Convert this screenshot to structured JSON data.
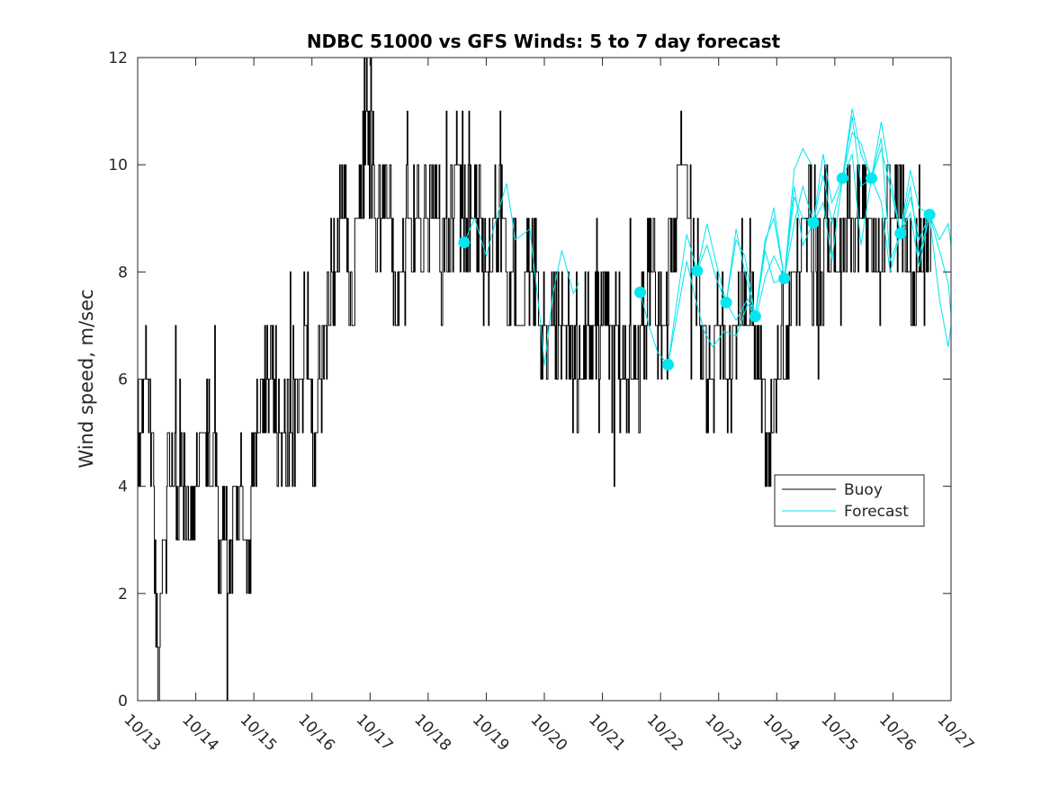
{
  "chart_data": {
    "type": "line",
    "title": "NDBC 51000 vs GFS Winds: 5 to 7 day forecast",
    "xlabel": "",
    "ylabel": "Wind speed, m/sec",
    "xlim": [
      0,
      14
    ],
    "ylim": [
      0,
      12
    ],
    "x_tick_labels": [
      "10/13",
      "10/14",
      "10/15",
      "10/16",
      "10/17",
      "10/18",
      "10/19",
      "10/20",
      "10/21",
      "10/22",
      "10/23",
      "10/24",
      "10/25",
      "10/26",
      "10/27"
    ],
    "y_ticks": [
      0,
      2,
      4,
      6,
      8,
      10,
      12
    ],
    "y_tick_labels": [
      "0",
      "2",
      "4",
      "6",
      "8",
      "10",
      "12"
    ],
    "legend": {
      "position": "right",
      "entries": [
        {
          "name": "Buoy",
          "color": "#000000"
        },
        {
          "name": "Forecast",
          "color": "#00e5ee"
        }
      ]
    },
    "colors": {
      "buoy": "#000000",
      "forecast": "#00e5ee",
      "marker": "#00e8f0"
    },
    "buoy_anchors": [
      [
        0.0,
        5
      ],
      [
        0.15,
        6
      ],
      [
        0.25,
        5
      ],
      [
        0.35,
        1
      ],
      [
        0.45,
        3
      ],
      [
        0.55,
        4
      ],
      [
        0.75,
        4
      ],
      [
        0.85,
        3
      ],
      [
        0.95,
        4
      ],
      [
        1.15,
        5
      ],
      [
        1.3,
        4
      ],
      [
        1.45,
        3
      ],
      [
        1.55,
        3
      ],
      [
        1.7,
        4
      ],
      [
        1.9,
        3
      ],
      [
        2.0,
        4
      ],
      [
        2.15,
        6
      ],
      [
        2.3,
        6
      ],
      [
        2.45,
        5
      ],
      [
        2.65,
        5
      ],
      [
        2.8,
        6
      ],
      [
        2.9,
        7
      ],
      [
        3.05,
        5
      ],
      [
        3.15,
        6
      ],
      [
        3.25,
        7
      ],
      [
        3.4,
        8
      ],
      [
        3.55,
        9
      ],
      [
        3.7,
        8
      ],
      [
        3.85,
        10
      ],
      [
        4.0,
        11
      ],
      [
        4.1,
        9
      ],
      [
        4.3,
        9
      ],
      [
        4.5,
        8
      ],
      [
        4.7,
        9
      ],
      [
        4.9,
        9
      ],
      [
        5.1,
        9
      ],
      [
        5.3,
        8
      ],
      [
        5.5,
        10
      ],
      [
        5.7,
        9
      ],
      [
        5.85,
        9
      ],
      [
        6.0,
        8
      ],
      [
        6.2,
        9
      ],
      [
        6.4,
        8
      ],
      [
        6.6,
        7
      ],
      [
        6.8,
        8
      ],
      [
        7.0,
        7
      ],
      [
        7.2,
        7
      ],
      [
        7.4,
        7
      ],
      [
        7.6,
        6
      ],
      [
        7.8,
        7
      ],
      [
        8.0,
        7
      ],
      [
        8.2,
        7
      ],
      [
        8.4,
        6
      ],
      [
        8.6,
        6
      ],
      [
        8.7,
        7
      ],
      [
        8.85,
        8
      ],
      [
        9.0,
        7
      ],
      [
        9.1,
        7
      ],
      [
        9.25,
        9
      ],
      [
        9.4,
        10
      ],
      [
        9.55,
        9
      ],
      [
        9.7,
        7
      ],
      [
        9.85,
        6
      ],
      [
        10.0,
        7
      ],
      [
        10.15,
        6
      ],
      [
        10.3,
        7
      ],
      [
        10.5,
        7
      ],
      [
        10.7,
        6
      ],
      [
        10.85,
        5
      ],
      [
        10.95,
        5
      ],
      [
        11.1,
        7
      ],
      [
        11.3,
        8
      ],
      [
        11.5,
        9
      ],
      [
        11.7,
        8
      ],
      [
        11.9,
        9
      ],
      [
        12.1,
        8
      ],
      [
        12.3,
        9
      ],
      [
        12.5,
        9
      ],
      [
        12.7,
        8
      ],
      [
        12.9,
        9
      ],
      [
        13.1,
        9
      ],
      [
        13.3,
        8
      ],
      [
        13.5,
        8
      ],
      [
        13.65,
        9
      ]
    ],
    "forecast_markers": [
      [
        5.62,
        8.55
      ],
      [
        8.65,
        7.62
      ],
      [
        9.13,
        6.27
      ],
      [
        9.63,
        8.02
      ],
      [
        10.13,
        7.43
      ],
      [
        10.63,
        7.17
      ],
      [
        11.13,
        7.88
      ],
      [
        11.63,
        8.92
      ],
      [
        12.13,
        9.75
      ],
      [
        12.63,
        9.75
      ],
      [
        13.13,
        8.72
      ],
      [
        13.63,
        9.07
      ]
    ],
    "forecast_series": [
      [
        [
          5.62,
          8.55
        ],
        [
          5.8,
          9.0
        ],
        [
          6.0,
          8.3
        ],
        [
          6.15,
          8.9
        ],
        [
          6.35,
          9.65
        ],
        [
          6.5,
          8.6
        ],
        [
          6.75,
          8.8
        ],
        [
          6.95,
          6.9
        ],
        [
          7.0,
          6.25
        ],
        [
          7.15,
          7.6
        ],
        [
          7.3,
          8.4
        ],
        [
          7.5,
          7.6
        ],
        [
          7.6,
          7.8
        ]
      ],
      [
        [
          8.65,
          7.62
        ],
        [
          8.8,
          7.0
        ],
        [
          8.95,
          6.5
        ],
        [
          9.13,
          6.27
        ],
        [
          9.3,
          7.3
        ],
        [
          9.45,
          8.2
        ],
        [
          9.6,
          7.5
        ],
        [
          9.75,
          6.9
        ],
        [
          9.9,
          6.6
        ],
        [
          10.1,
          6.9
        ],
        [
          10.3,
          6.8
        ],
        [
          10.5,
          7.4
        ],
        [
          10.65,
          7.17
        ]
      ],
      [
        [
          9.13,
          6.27
        ],
        [
          9.3,
          7.6
        ],
        [
          9.45,
          8.7
        ],
        [
          9.63,
          8.02
        ],
        [
          9.8,
          8.5
        ],
        [
          9.95,
          7.9
        ],
        [
          10.13,
          7.43
        ],
        [
          10.3,
          7.1
        ],
        [
          10.5,
          7.5
        ],
        [
          10.65,
          7.17
        ],
        [
          10.8,
          7.9
        ],
        [
          10.95,
          8.3
        ],
        [
          11.13,
          7.88
        ]
      ],
      [
        [
          9.63,
          8.02
        ],
        [
          9.8,
          8.9
        ],
        [
          9.95,
          8.2
        ],
        [
          10.13,
          7.43
        ],
        [
          10.3,
          8.6
        ],
        [
          10.45,
          8.3
        ],
        [
          10.63,
          7.17
        ],
        [
          10.8,
          8.5
        ],
        [
          10.95,
          9.2
        ],
        [
          11.13,
          7.88
        ],
        [
          11.3,
          8.9
        ],
        [
          11.45,
          9.6
        ],
        [
          11.63,
          8.92
        ]
      ],
      [
        [
          10.13,
          7.43
        ],
        [
          10.3,
          8.8
        ],
        [
          10.45,
          8.0
        ],
        [
          10.63,
          7.17
        ],
        [
          10.8,
          8.6
        ],
        [
          10.95,
          9.0
        ],
        [
          11.13,
          7.88
        ],
        [
          11.3,
          9.9
        ],
        [
          11.45,
          10.3
        ],
        [
          11.6,
          10.0
        ]
      ],
      [
        [
          10.63,
          7.17
        ],
        [
          10.8,
          8.4
        ],
        [
          10.95,
          7.8
        ],
        [
          11.13,
          7.88
        ],
        [
          11.3,
          9.4
        ],
        [
          11.45,
          9.0
        ],
        [
          11.63,
          8.92
        ],
        [
          11.8,
          10.2
        ],
        [
          11.95,
          9.3
        ],
        [
          12.13,
          9.75
        ],
        [
          12.3,
          10.6
        ],
        [
          12.45,
          10.4
        ],
        [
          12.63,
          9.75
        ]
      ],
      [
        [
          11.13,
          7.88
        ],
        [
          11.3,
          9.6
        ],
        [
          11.45,
          8.5
        ],
        [
          11.63,
          8.92
        ],
        [
          11.8,
          9.8
        ],
        [
          11.95,
          8.9
        ],
        [
          12.13,
          9.75
        ],
        [
          12.3,
          11.05
        ],
        [
          12.45,
          10.2
        ],
        [
          12.63,
          9.75
        ],
        [
          12.8,
          10.3
        ],
        [
          12.95,
          9.6
        ],
        [
          13.13,
          8.72
        ]
      ],
      [
        [
          11.63,
          8.92
        ],
        [
          11.8,
          9.3
        ],
        [
          11.95,
          8.2
        ],
        [
          12.13,
          9.75
        ],
        [
          12.3,
          10.9
        ],
        [
          12.45,
          9.6
        ],
        [
          12.63,
          9.75
        ],
        [
          12.8,
          10.8
        ],
        [
          12.95,
          9.8
        ],
        [
          13.13,
          8.72
        ],
        [
          13.3,
          9.6
        ],
        [
          13.45,
          8.3
        ],
        [
          13.63,
          9.07
        ]
      ],
      [
        [
          12.13,
          9.75
        ],
        [
          12.3,
          10.2
        ],
        [
          12.45,
          8.5
        ],
        [
          12.63,
          9.75
        ],
        [
          12.8,
          10.5
        ],
        [
          12.95,
          8.2
        ],
        [
          13.13,
          8.72
        ],
        [
          13.3,
          9.4
        ],
        [
          13.45,
          8.6
        ],
        [
          13.63,
          9.07
        ],
        [
          13.8,
          7.5
        ],
        [
          13.95,
          6.6
        ],
        [
          14.0,
          7.0
        ]
      ],
      [
        [
          12.63,
          9.75
        ],
        [
          12.8,
          9.3
        ],
        [
          12.95,
          8.0
        ],
        [
          13.13,
          8.72
        ],
        [
          13.3,
          9.9
        ],
        [
          13.45,
          9.2
        ],
        [
          13.63,
          9.07
        ],
        [
          13.8,
          8.4
        ],
        [
          13.95,
          7.8
        ],
        [
          14.0,
          7.2
        ]
      ],
      [
        [
          13.13,
          8.72
        ],
        [
          13.3,
          9.1
        ],
        [
          13.45,
          8.1
        ],
        [
          13.63,
          9.07
        ],
        [
          13.8,
          8.6
        ],
        [
          13.95,
          8.9
        ],
        [
          14.0,
          8.5
        ]
      ]
    ]
  }
}
